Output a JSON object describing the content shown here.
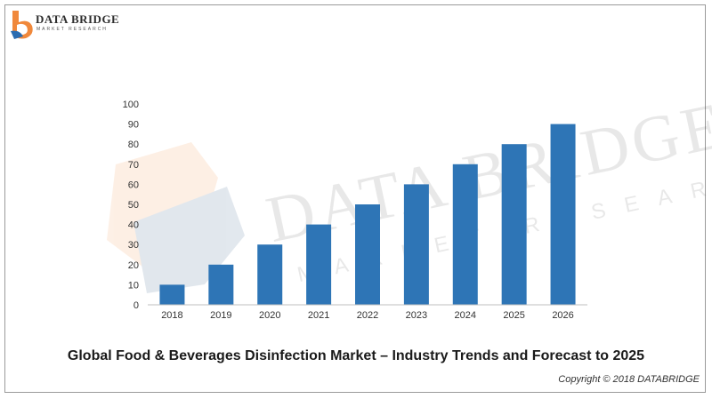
{
  "logo": {
    "name": "DATA BRIDGE",
    "subtitle": "MARKET RESEARCH",
    "icon": "data-bridge-logo-mark",
    "colors": {
      "orange": "#f0883b",
      "blue": "#2b6cb0"
    }
  },
  "watermark": {
    "name": "DATA BRIDGE",
    "subtitle": "MARKET RESEARCH"
  },
  "footer": {
    "title": "Global Food & Beverages Disinfection Market – Industry Trends and Forecast to 2025",
    "copyright": "Copyright © 2018 DATABRIDGE"
  },
  "chart_data": {
    "type": "bar",
    "categories": [
      "2018",
      "2019",
      "2020",
      "2021",
      "2022",
      "2023",
      "2024",
      "2025",
      "2026"
    ],
    "values": [
      10,
      20,
      30,
      40,
      50,
      60,
      70,
      80,
      90
    ],
    "ylim": [
      0,
      100
    ],
    "yticks": [
      0,
      10,
      20,
      30,
      40,
      50,
      60,
      70,
      80,
      90,
      100
    ],
    "grid": false,
    "bar_color": "#2e75b6"
  }
}
